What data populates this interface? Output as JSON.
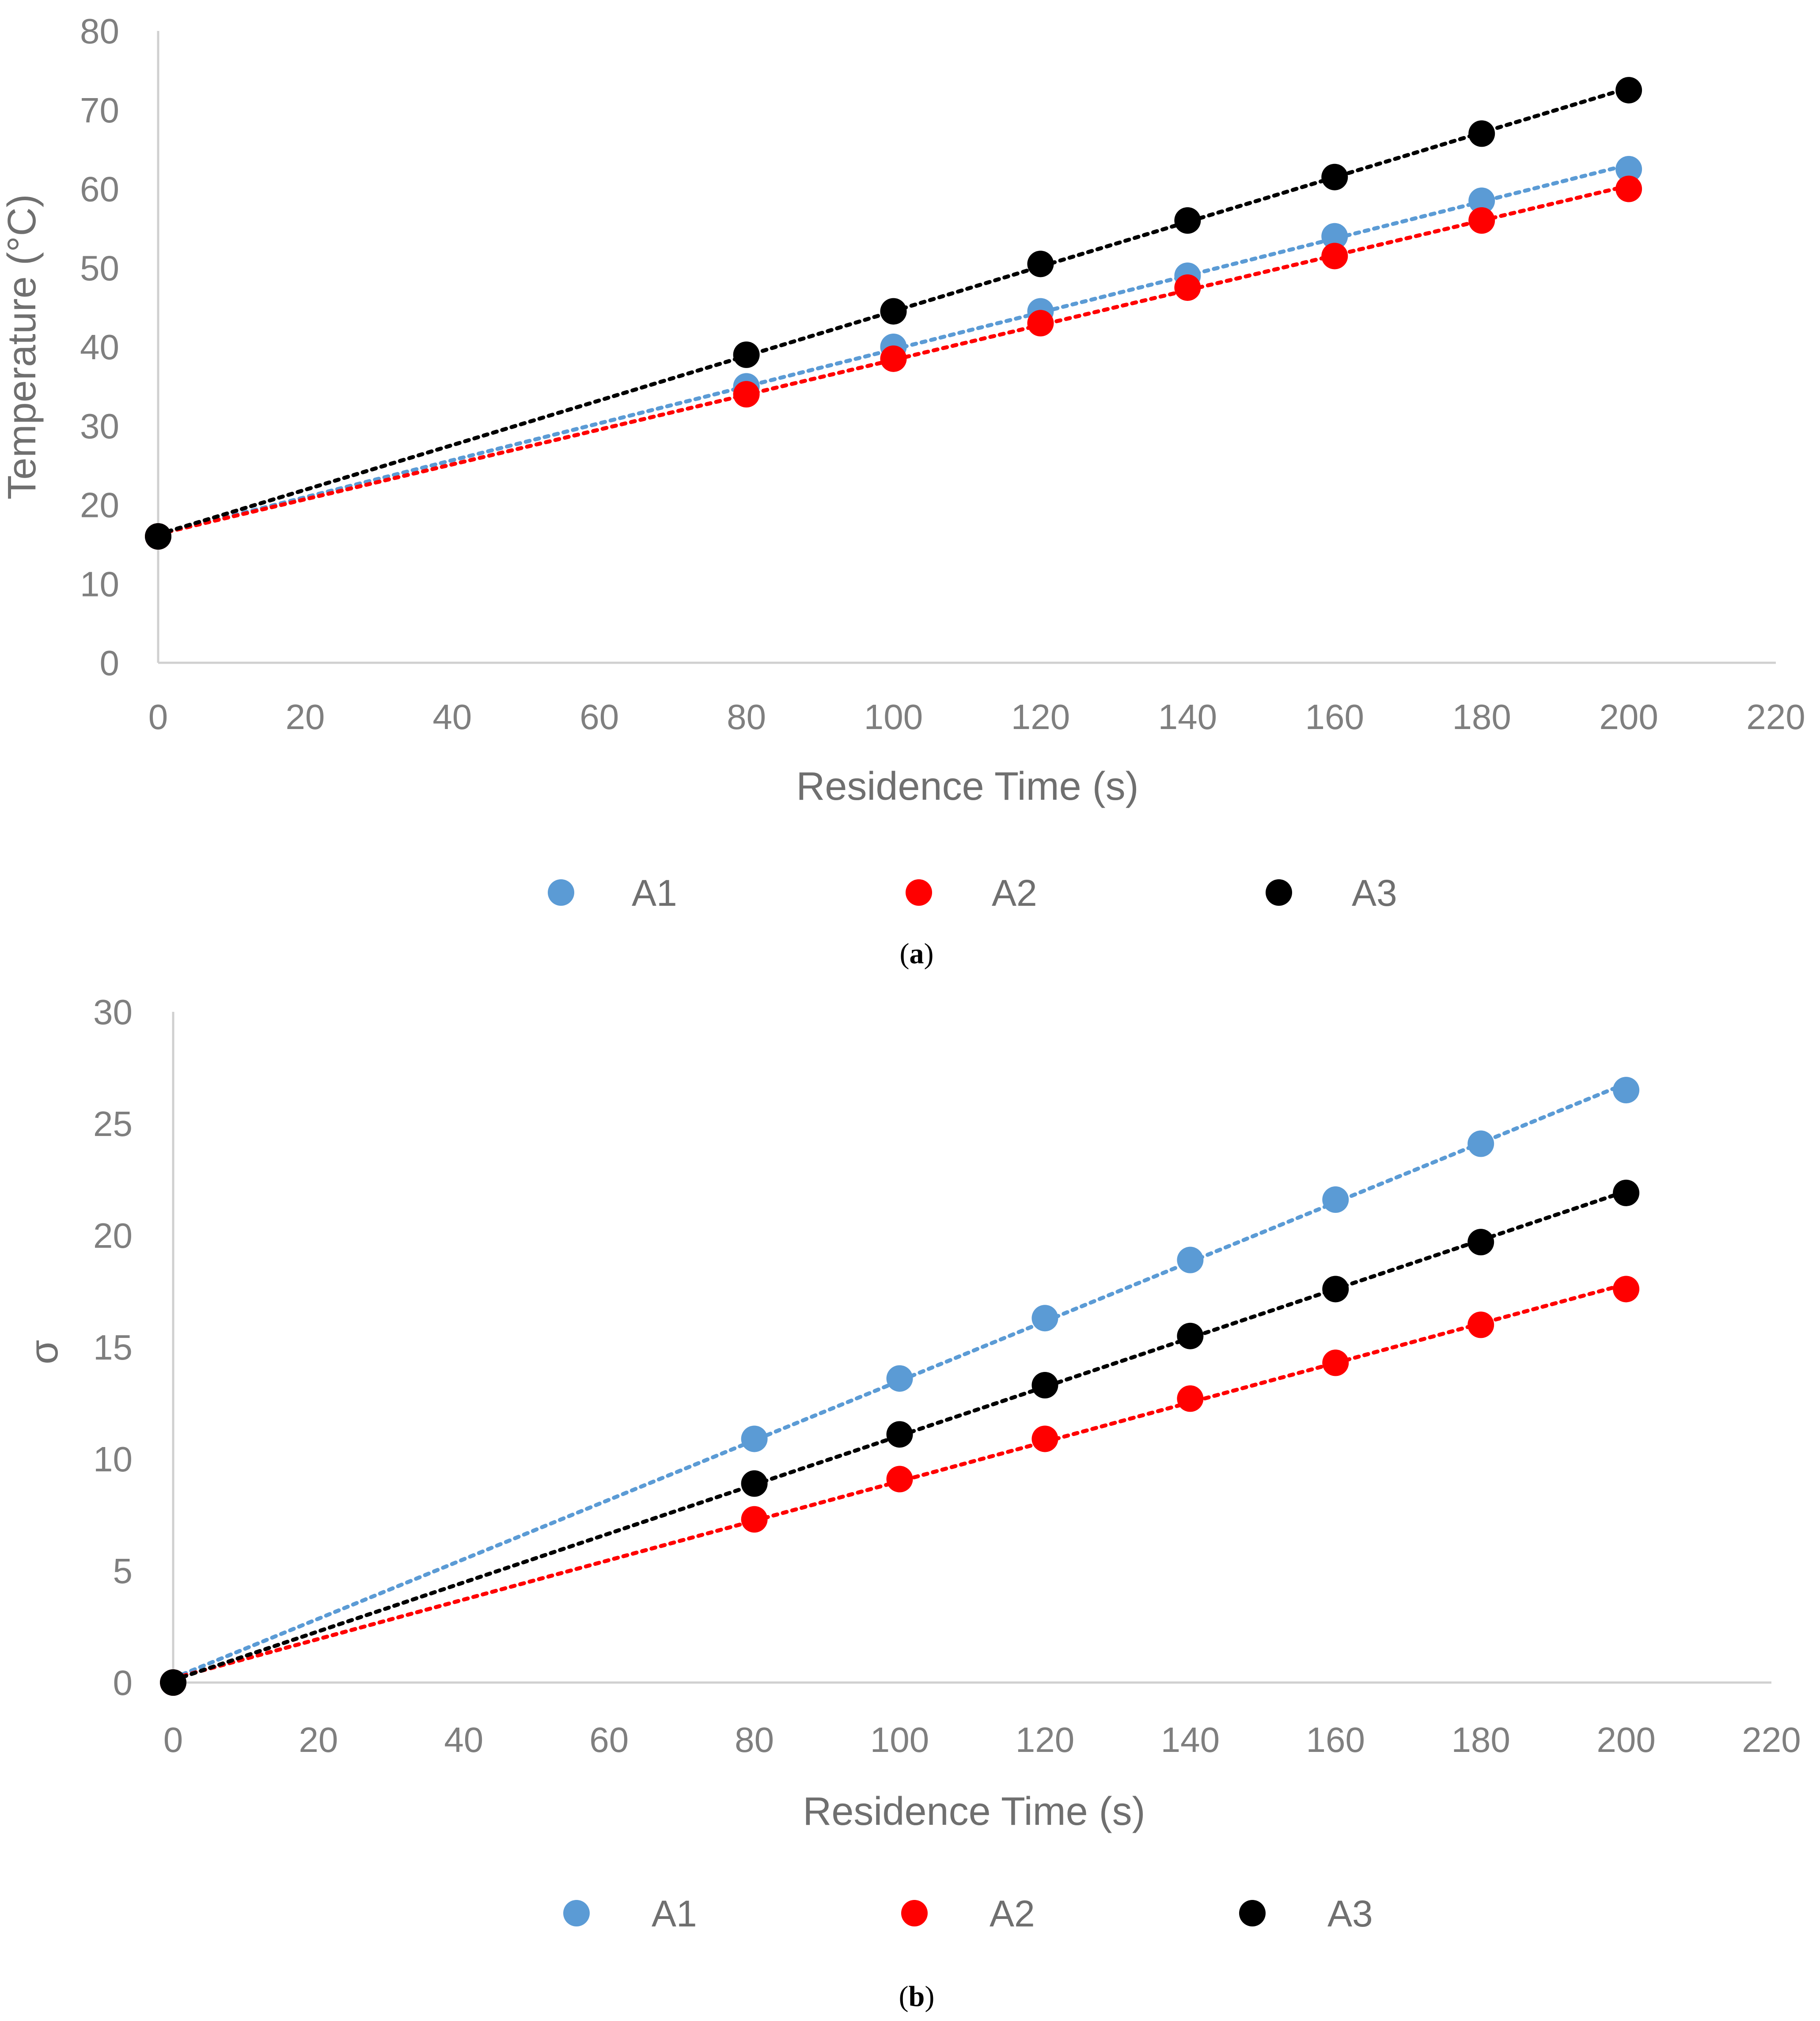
{
  "charts": [
    {
      "id": "a",
      "caption_letter": "a",
      "chart_data": {
        "type": "scatter",
        "xlabel": "Residence Time (s)",
        "ylabel": "Temperature (°C)",
        "xlim": [
          0,
          220
        ],
        "ylim": [
          0,
          80
        ],
        "xticks": [
          "0",
          "20",
          "40",
          "60",
          "80",
          "100",
          "120",
          "140",
          "160",
          "180",
          "200",
          "220"
        ],
        "yticks": [
          "0",
          "10",
          "20",
          "30",
          "40",
          "50",
          "60",
          "70",
          "80"
        ],
        "trendline": "linear, dotted",
        "x": [
          0,
          80,
          100,
          120,
          140,
          160,
          180,
          200
        ],
        "series": [
          {
            "name": "A1",
            "color": "#5b9bd5",
            "values": [
              16,
              35,
              40,
              44.5,
              49,
              54,
              58.5,
              62.5
            ]
          },
          {
            "name": "A2",
            "color": "#ff0000",
            "values": [
              16,
              34,
              38.5,
              43,
              47.5,
              51.5,
              56,
              60
            ]
          },
          {
            "name": "A3",
            "color": "#000000",
            "values": [
              16,
              39,
              44.5,
              50.5,
              56,
              61.5,
              67,
              72.5
            ]
          }
        ],
        "legend": "bottom"
      }
    },
    {
      "id": "b",
      "caption_letter": "b",
      "chart_data": {
        "type": "scatter",
        "xlabel": "Residence Time (s)",
        "ylabel": "σ",
        "xlim": [
          0,
          220
        ],
        "ylim": [
          0,
          30
        ],
        "xticks": [
          "0",
          "20",
          "40",
          "60",
          "80",
          "100",
          "120",
          "140",
          "160",
          "180",
          "200",
          "220"
        ],
        "yticks": [
          "0",
          "5",
          "10",
          "15",
          "20",
          "25",
          "30"
        ],
        "trendline": "linear, dotted",
        "x": [
          0,
          80,
          100,
          120,
          140,
          160,
          180,
          200
        ],
        "series": [
          {
            "name": "A1",
            "color": "#5b9bd5",
            "values": [
              0,
              10.9,
              13.6,
              16.3,
              18.9,
              21.6,
              24.1,
              26.5
            ]
          },
          {
            "name": "A2",
            "color": "#ff0000",
            "values": [
              0,
              7.3,
              9.1,
              10.9,
              12.7,
              14.3,
              16.0,
              17.6
            ]
          },
          {
            "name": "A3",
            "color": "#000000",
            "values": [
              0,
              8.9,
              11.1,
              13.3,
              15.5,
              17.6,
              19.7,
              21.9
            ]
          }
        ],
        "legend": "bottom"
      }
    }
  ]
}
